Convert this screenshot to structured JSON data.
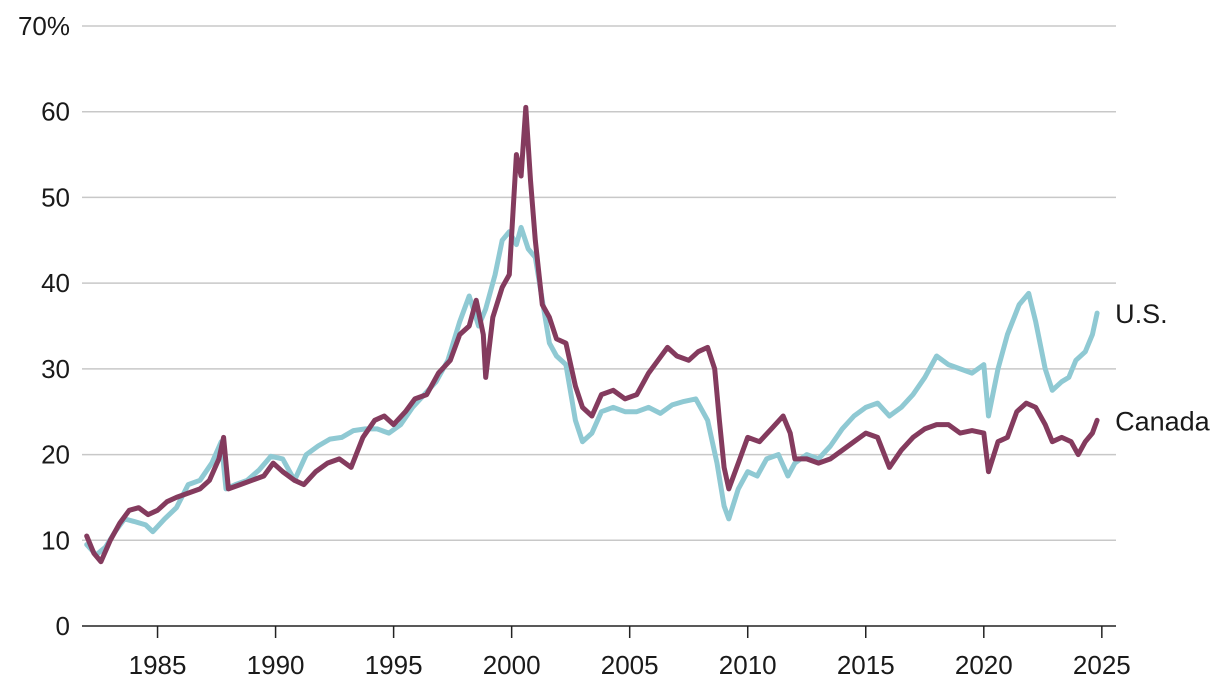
{
  "chart_data": {
    "type": "line",
    "title": "",
    "xlabel": "",
    "ylabel": "",
    "x_range": [
      1981.8,
      2025.6
    ],
    "ylim": [
      0,
      70
    ],
    "y_ticks": [
      {
        "value": 0,
        "label": "0"
      },
      {
        "value": 10,
        "label": "10"
      },
      {
        "value": 20,
        "label": "20"
      },
      {
        "value": 30,
        "label": "30"
      },
      {
        "value": 40,
        "label": "40"
      },
      {
        "value": 50,
        "label": "50"
      },
      {
        "value": 60,
        "label": "60"
      },
      {
        "value": 70,
        "label": "70%"
      }
    ],
    "x_ticks": [
      {
        "value": 1985,
        "label": "1985"
      },
      {
        "value": 1990,
        "label": "1990"
      },
      {
        "value": 1995,
        "label": "1995"
      },
      {
        "value": 2000,
        "label": "2000"
      },
      {
        "value": 2005,
        "label": "2005"
      },
      {
        "value": 2010,
        "label": "2010"
      },
      {
        "value": 2015,
        "label": "2015"
      },
      {
        "value": 2020,
        "label": "2020"
      },
      {
        "value": 2025,
        "label": "2025"
      }
    ],
    "grid": true,
    "legend": "direct labels at right end of lines",
    "series": [
      {
        "name": "U.S.",
        "color": "#8fc9d3",
        "points": [
          [
            1982.0,
            9.5
          ],
          [
            1982.4,
            8.3
          ],
          [
            1982.8,
            9.2
          ],
          [
            1983.2,
            11.0
          ],
          [
            1983.6,
            12.5
          ],
          [
            1984.0,
            12.2
          ],
          [
            1984.5,
            11.8
          ],
          [
            1984.8,
            11.0
          ],
          [
            1985.3,
            12.5
          ],
          [
            1985.8,
            13.8
          ],
          [
            1986.3,
            16.5
          ],
          [
            1986.8,
            17.0
          ],
          [
            1987.3,
            19.0
          ],
          [
            1987.7,
            21.5
          ],
          [
            1987.9,
            16.0
          ],
          [
            1988.3,
            16.5
          ],
          [
            1988.8,
            17.0
          ],
          [
            1989.3,
            18.2
          ],
          [
            1989.8,
            19.8
          ],
          [
            1990.3,
            19.5
          ],
          [
            1990.8,
            17.0
          ],
          [
            1991.3,
            20.0
          ],
          [
            1991.8,
            21.0
          ],
          [
            1992.3,
            21.8
          ],
          [
            1992.8,
            22.0
          ],
          [
            1993.3,
            22.8
          ],
          [
            1993.8,
            23.0
          ],
          [
            1994.3,
            23.0
          ],
          [
            1994.8,
            22.5
          ],
          [
            1995.3,
            23.5
          ],
          [
            1995.8,
            25.5
          ],
          [
            1996.3,
            27.0
          ],
          [
            1996.8,
            28.5
          ],
          [
            1997.3,
            31.0
          ],
          [
            1997.8,
            35.5
          ],
          [
            1998.2,
            38.5
          ],
          [
            1998.6,
            35.0
          ],
          [
            1998.9,
            37.0
          ],
          [
            1999.3,
            41.0
          ],
          [
            1999.6,
            45.0
          ],
          [
            1999.9,
            46.0
          ],
          [
            2000.2,
            44.5
          ],
          [
            2000.4,
            46.5
          ],
          [
            2000.7,
            44.0
          ],
          [
            2001.0,
            43.0
          ],
          [
            2001.3,
            38.0
          ],
          [
            2001.6,
            33.0
          ],
          [
            2001.9,
            31.5
          ],
          [
            2002.3,
            30.5
          ],
          [
            2002.7,
            24.0
          ],
          [
            2003.0,
            21.5
          ],
          [
            2003.4,
            22.5
          ],
          [
            2003.8,
            25.0
          ],
          [
            2004.3,
            25.5
          ],
          [
            2004.8,
            25.0
          ],
          [
            2005.3,
            25.0
          ],
          [
            2005.8,
            25.5
          ],
          [
            2006.3,
            24.8
          ],
          [
            2006.8,
            25.8
          ],
          [
            2007.3,
            26.2
          ],
          [
            2007.8,
            26.5
          ],
          [
            2008.3,
            24.0
          ],
          [
            2008.7,
            19.0
          ],
          [
            2009.0,
            14.0
          ],
          [
            2009.2,
            12.5
          ],
          [
            2009.6,
            16.0
          ],
          [
            2010.0,
            18.0
          ],
          [
            2010.4,
            17.5
          ],
          [
            2010.8,
            19.5
          ],
          [
            2011.3,
            20.0
          ],
          [
            2011.7,
            17.5
          ],
          [
            2012.0,
            19.0
          ],
          [
            2012.5,
            20.0
          ],
          [
            2013.0,
            19.5
          ],
          [
            2013.5,
            21.0
          ],
          [
            2014.0,
            23.0
          ],
          [
            2014.5,
            24.5
          ],
          [
            2015.0,
            25.5
          ],
          [
            2015.5,
            26.0
          ],
          [
            2016.0,
            24.5
          ],
          [
            2016.5,
            25.5
          ],
          [
            2017.0,
            27.0
          ],
          [
            2017.5,
            29.0
          ],
          [
            2018.0,
            31.5
          ],
          [
            2018.5,
            30.5
          ],
          [
            2019.0,
            30.0
          ],
          [
            2019.5,
            29.5
          ],
          [
            2020.0,
            30.5
          ],
          [
            2020.2,
            24.5
          ],
          [
            2020.6,
            30.0
          ],
          [
            2021.0,
            34.0
          ],
          [
            2021.5,
            37.5
          ],
          [
            2021.9,
            38.8
          ],
          [
            2022.2,
            35.5
          ],
          [
            2022.6,
            30.0
          ],
          [
            2022.9,
            27.5
          ],
          [
            2023.3,
            28.5
          ],
          [
            2023.6,
            29.0
          ],
          [
            2023.9,
            31.0
          ],
          [
            2024.3,
            32.0
          ],
          [
            2024.6,
            34.0
          ],
          [
            2024.8,
            36.5
          ]
        ]
      },
      {
        "name": "Canada",
        "color": "#843b5e",
        "points": [
          [
            1982.0,
            10.5
          ],
          [
            1982.3,
            8.5
          ],
          [
            1982.6,
            7.5
          ],
          [
            1983.0,
            10.0
          ],
          [
            1983.4,
            12.0
          ],
          [
            1983.8,
            13.5
          ],
          [
            1984.2,
            13.8
          ],
          [
            1984.6,
            13.0
          ],
          [
            1985.0,
            13.5
          ],
          [
            1985.4,
            14.5
          ],
          [
            1985.8,
            15.0
          ],
          [
            1986.3,
            15.5
          ],
          [
            1986.8,
            16.0
          ],
          [
            1987.2,
            17.0
          ],
          [
            1987.6,
            19.5
          ],
          [
            1987.8,
            22.0
          ],
          [
            1988.0,
            16.0
          ],
          [
            1988.5,
            16.5
          ],
          [
            1989.0,
            17.0
          ],
          [
            1989.5,
            17.5
          ],
          [
            1989.9,
            19.0
          ],
          [
            1990.3,
            18.0
          ],
          [
            1990.8,
            17.0
          ],
          [
            1991.2,
            16.5
          ],
          [
            1991.7,
            18.0
          ],
          [
            1992.2,
            19.0
          ],
          [
            1992.7,
            19.5
          ],
          [
            1993.2,
            18.5
          ],
          [
            1993.7,
            22.0
          ],
          [
            1994.2,
            24.0
          ],
          [
            1994.6,
            24.5
          ],
          [
            1995.0,
            23.5
          ],
          [
            1995.5,
            25.0
          ],
          [
            1995.9,
            26.5
          ],
          [
            1996.4,
            27.0
          ],
          [
            1996.9,
            29.5
          ],
          [
            1997.4,
            31.0
          ],
          [
            1997.8,
            34.0
          ],
          [
            1998.2,
            35.0
          ],
          [
            1998.5,
            38.0
          ],
          [
            1998.8,
            34.0
          ],
          [
            1998.9,
            29.0
          ],
          [
            1999.2,
            36.0
          ],
          [
            1999.6,
            39.5
          ],
          [
            1999.9,
            41.0
          ],
          [
            2000.2,
            55.0
          ],
          [
            2000.4,
            52.5
          ],
          [
            2000.6,
            60.5
          ],
          [
            2000.8,
            52.0
          ],
          [
            2001.0,
            45.0
          ],
          [
            2001.3,
            37.5
          ],
          [
            2001.6,
            36.0
          ],
          [
            2001.9,
            33.5
          ],
          [
            2002.3,
            33.0
          ],
          [
            2002.7,
            28.0
          ],
          [
            2003.0,
            25.5
          ],
          [
            2003.4,
            24.5
          ],
          [
            2003.8,
            27.0
          ],
          [
            2004.3,
            27.5
          ],
          [
            2004.8,
            26.5
          ],
          [
            2005.3,
            27.0
          ],
          [
            2005.8,
            29.5
          ],
          [
            2006.2,
            31.0
          ],
          [
            2006.6,
            32.5
          ],
          [
            2007.0,
            31.5
          ],
          [
            2007.5,
            31.0
          ],
          [
            2007.9,
            32.0
          ],
          [
            2008.3,
            32.5
          ],
          [
            2008.6,
            30.0
          ],
          [
            2008.8,
            24.0
          ],
          [
            2009.0,
            18.5
          ],
          [
            2009.2,
            16.0
          ],
          [
            2009.6,
            19.0
          ],
          [
            2010.0,
            22.0
          ],
          [
            2010.5,
            21.5
          ],
          [
            2011.0,
            23.0
          ],
          [
            2011.5,
            24.5
          ],
          [
            2011.8,
            22.5
          ],
          [
            2012.0,
            19.5
          ],
          [
            2012.5,
            19.5
          ],
          [
            2013.0,
            19.0
          ],
          [
            2013.5,
            19.5
          ],
          [
            2014.0,
            20.5
          ],
          [
            2014.5,
            21.5
          ],
          [
            2015.0,
            22.5
          ],
          [
            2015.5,
            22.0
          ],
          [
            2016.0,
            18.5
          ],
          [
            2016.5,
            20.5
          ],
          [
            2017.0,
            22.0
          ],
          [
            2017.5,
            23.0
          ],
          [
            2018.0,
            23.5
          ],
          [
            2018.5,
            23.5
          ],
          [
            2019.0,
            22.5
          ],
          [
            2019.5,
            22.8
          ],
          [
            2020.0,
            22.5
          ],
          [
            2020.2,
            18.0
          ],
          [
            2020.6,
            21.5
          ],
          [
            2021.0,
            22.0
          ],
          [
            2021.4,
            25.0
          ],
          [
            2021.8,
            26.0
          ],
          [
            2022.2,
            25.5
          ],
          [
            2022.6,
            23.5
          ],
          [
            2022.9,
            21.5
          ],
          [
            2023.3,
            22.0
          ],
          [
            2023.7,
            21.5
          ],
          [
            2024.0,
            20.0
          ],
          [
            2024.3,
            21.5
          ],
          [
            2024.6,
            22.5
          ],
          [
            2024.8,
            24.0
          ]
        ]
      }
    ]
  }
}
